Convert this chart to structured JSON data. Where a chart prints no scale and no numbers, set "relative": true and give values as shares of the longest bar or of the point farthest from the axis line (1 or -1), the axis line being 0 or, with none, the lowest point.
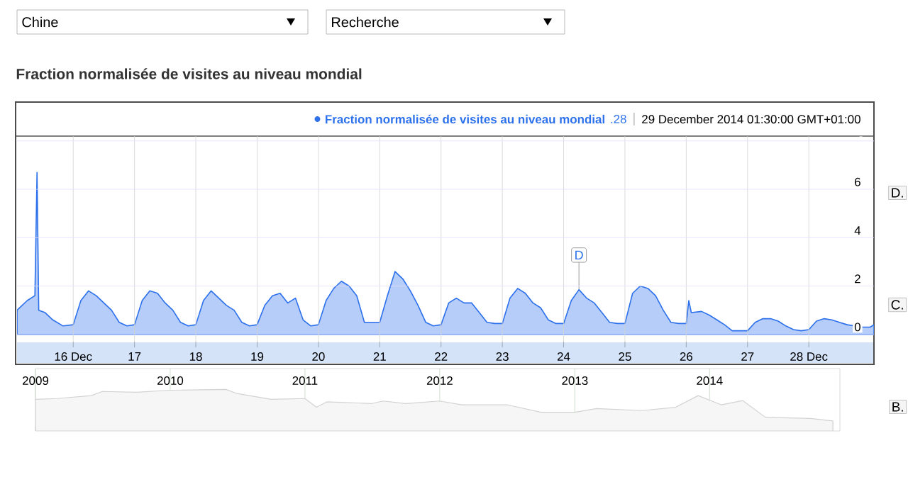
{
  "chart_data": [
    {
      "type": "area",
      "title": "Fraction normalisée de visites au niveau mondial",
      "legend": "top",
      "grid": true,
      "annotations": [
        "Chine",
        "Recherche",
        ".28",
        "29 December 2014 01:30:00 GMT+01:00",
        {
          "text": "D",
          "x": "2014-12-24T06:00",
          "y": 1.85
        },
        "D.",
        "C.",
        "B."
      ],
      "x": [
        "2014-12-15T02:00",
        "2014-12-15T06:00",
        "2014-12-15T09:00",
        "2014-12-15T09:50",
        "2014-12-15T10:30",
        "2014-12-15T13:00",
        "2014-12-15T16:00",
        "2014-12-15T20:00",
        "2014-12-16T00:00",
        "2014-12-16T03:00",
        "2014-12-16T06:00",
        "2014-12-16T09:00",
        "2014-12-16T12:00",
        "2014-12-16T15:00",
        "2014-12-16T18:00",
        "2014-12-16T21:00",
        "2014-12-17T00:00",
        "2014-12-17T03:00",
        "2014-12-17T06:00",
        "2014-12-17T09:00",
        "2014-12-17T12:00",
        "2014-12-17T15:00",
        "2014-12-17T18:00",
        "2014-12-17T21:00",
        "2014-12-18T00:00",
        "2014-12-18T03:00",
        "2014-12-18T06:00",
        "2014-12-18T09:00",
        "2014-12-18T12:00",
        "2014-12-18T15:00",
        "2014-12-18T18:00",
        "2014-12-18T21:00",
        "2014-12-19T00:00",
        "2014-12-19T03:00",
        "2014-12-19T06:00",
        "2014-12-19T09:00",
        "2014-12-19T12:00",
        "2014-12-19T15:00",
        "2014-12-19T18:00",
        "2014-12-19T21:00",
        "2014-12-20T00:00",
        "2014-12-20T03:00",
        "2014-12-20T06:00",
        "2014-12-20T09:00",
        "2014-12-20T12:00",
        "2014-12-20T15:00",
        "2014-12-20T18:00",
        "2014-12-20T21:00",
        "2014-12-21T00:00",
        "2014-12-21T03:00",
        "2014-12-21T06:00",
        "2014-12-21T09:00",
        "2014-12-21T12:00",
        "2014-12-21T15:00",
        "2014-12-21T18:00",
        "2014-12-21T21:00",
        "2014-12-22T00:00",
        "2014-12-22T03:00",
        "2014-12-22T06:00",
        "2014-12-22T09:00",
        "2014-12-22T12:00",
        "2014-12-22T15:00",
        "2014-12-22T18:00",
        "2014-12-22T21:00",
        "2014-12-23T00:00",
        "2014-12-23T03:00",
        "2014-12-23T06:00",
        "2014-12-23T09:00",
        "2014-12-23T12:00",
        "2014-12-23T15:00",
        "2014-12-23T18:00",
        "2014-12-23T21:00",
        "2014-12-24T00:00",
        "2014-12-24T03:00",
        "2014-12-24T06:00",
        "2014-12-24T09:00",
        "2014-12-24T12:00",
        "2014-12-24T15:00",
        "2014-12-24T18:00",
        "2014-12-24T21:00",
        "2014-12-25T00:00",
        "2014-12-25T03:00",
        "2014-12-25T06:00",
        "2014-12-25T09:00",
        "2014-12-25T12:00",
        "2014-12-25T15:00",
        "2014-12-25T18:00",
        "2014-12-25T21:00",
        "2014-12-26T00:00",
        "2014-12-26T01:00",
        "2014-12-26T02:00",
        "2014-12-26T06:00",
        "2014-12-26T09:00",
        "2014-12-26T12:00",
        "2014-12-26T15:00",
        "2014-12-26T18:00",
        "2014-12-26T21:00",
        "2014-12-27T00:00",
        "2014-12-27T03:00",
        "2014-12-27T06:00",
        "2014-12-27T09:00",
        "2014-12-27T12:00",
        "2014-12-27T15:00",
        "2014-12-27T18:00",
        "2014-12-27T21:00",
        "2014-12-28T00:00",
        "2014-12-28T03:00",
        "2014-12-28T06:00",
        "2014-12-28T09:00",
        "2014-12-28T12:00",
        "2014-12-28T15:00",
        "2014-12-28T18:00",
        "2014-12-28T21:00",
        "2014-12-29T00:00",
        "2014-12-29T01:30"
      ],
      "series": [
        {
          "name": "Fraction normalisée de visites au niveau mondial",
          "color": "#b5cdf8",
          "values": [
            1.0,
            1.4,
            1.6,
            6.7,
            1.0,
            0.9,
            0.6,
            0.35,
            0.4,
            1.4,
            1.8,
            1.6,
            1.3,
            1.0,
            0.5,
            0.35,
            0.4,
            1.4,
            1.8,
            1.7,
            1.3,
            1.0,
            0.5,
            0.35,
            0.4,
            1.4,
            1.8,
            1.5,
            1.2,
            1.0,
            0.5,
            0.35,
            0.4,
            1.2,
            1.6,
            1.7,
            1.3,
            1.5,
            0.6,
            0.35,
            0.4,
            1.4,
            1.9,
            2.2,
            2.0,
            1.6,
            0.5,
            0.5,
            0.5,
            1.6,
            2.6,
            2.3,
            1.8,
            1.2,
            0.5,
            0.35,
            0.4,
            1.3,
            1.5,
            1.3,
            1.3,
            0.9,
            0.5,
            0.45,
            0.45,
            1.5,
            1.9,
            1.7,
            1.3,
            1.1,
            0.6,
            0.45,
            0.45,
            1.4,
            1.85,
            1.5,
            1.3,
            0.9,
            0.5,
            0.45,
            0.45,
            1.7,
            2.0,
            1.9,
            1.6,
            1.0,
            0.5,
            0.45,
            0.45,
            1.4,
            0.9,
            0.95,
            0.8,
            0.6,
            0.4,
            0.15,
            0.15,
            0.15,
            0.5,
            0.65,
            0.65,
            0.55,
            0.35,
            0.2,
            0.15,
            0.2,
            0.55,
            0.65,
            0.6,
            0.5,
            0.4,
            0.35,
            0.3,
            0.3,
            0.4
          ]
        }
      ],
      "xlim": [
        "2014-12-15T02:00",
        "2014-12-29T01:30"
      ],
      "xticks": [
        {
          "value": "2014-12-16",
          "label": "16 Dec"
        },
        {
          "value": "2014-12-17",
          "label": "17"
        },
        {
          "value": "2014-12-18",
          "label": "18"
        },
        {
          "value": "2014-12-19",
          "label": "19"
        },
        {
          "value": "2014-12-20",
          "label": "20"
        },
        {
          "value": "2014-12-21",
          "label": "21"
        },
        {
          "value": "2014-12-22",
          "label": "22"
        },
        {
          "value": "2014-12-23",
          "label": "23"
        },
        {
          "value": "2014-12-24",
          "label": "24"
        },
        {
          "value": "2014-12-25",
          "label": "25"
        },
        {
          "value": "2014-12-26",
          "label": "26"
        },
        {
          "value": "2014-12-27",
          "label": "27"
        },
        {
          "value": "2014-12-28",
          "label": "28 Dec"
        }
      ],
      "ylim": [
        -0.3,
        8.2
      ],
      "yticks": [
        0,
        2,
        4,
        6,
        {
          "value": 8,
          "label": null
        }
      ]
    },
    {
      "type": "area",
      "relative": true,
      "grid": "x",
      "x": [
        "2009-01",
        "2009-03",
        "2009-06",
        "2009-07",
        "2009-10",
        "2010-01",
        "2010-06",
        "2010-07",
        "2010-10",
        "2011-01",
        "2011-02",
        "2011-03",
        "2011-07",
        "2011-08",
        "2011-10",
        "2012-01",
        "2012-03",
        "2012-07",
        "2012-10",
        "2013-01",
        "2013-03",
        "2013-07",
        "2013-10",
        "2013-12",
        "2014-02",
        "2014-04",
        "2014-06",
        "2014-10",
        "2014-12"
      ],
      "series": [
        {
          "color": "#f6f6f6",
          "values": [
            0.76,
            0.78,
            0.85,
            0.95,
            0.93,
            0.98,
            1.0,
            0.9,
            0.76,
            0.78,
            0.57,
            0.7,
            0.66,
            0.72,
            0.66,
            0.72,
            0.63,
            0.63,
            0.45,
            0.45,
            0.54,
            0.49,
            0.57,
            0.85,
            0.63,
            0.73,
            0.33,
            0.3,
            0.24
          ]
        }
      ],
      "xlim": [
        "2009",
        "2014-12-20"
      ],
      "xticks": [
        {
          "value": "2009",
          "label": "2009"
        },
        {
          "value": "2010",
          "label": "2010"
        },
        {
          "value": "2011",
          "label": "2011"
        },
        {
          "value": "2012",
          "label": "2012"
        },
        {
          "value": "2013",
          "label": "2013"
        },
        {
          "value": "2014",
          "label": "2014"
        }
      ]
    }
  ]
}
